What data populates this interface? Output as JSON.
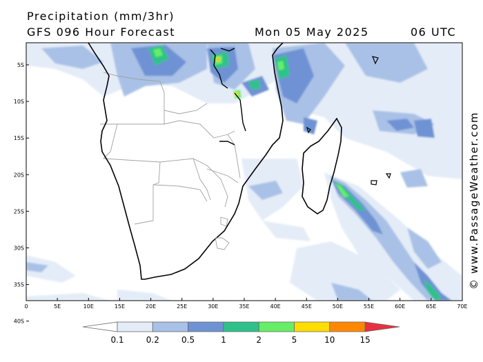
{
  "header": {
    "product": "Precipitation (mm/3hr)",
    "model": "GFS 096 Hour Forecast",
    "date": "Mon 05 May 2025",
    "time": "06 UTC"
  },
  "credit": "© www.PassageWeather.com",
  "axes": {
    "lat_labels": [
      "5S",
      "10S",
      "15S",
      "20S",
      "25S",
      "30S",
      "35S",
      "40S"
    ],
    "lon_labels": [
      "0",
      "5E",
      "10E",
      "15E",
      "20E",
      "25E",
      "30E",
      "35E",
      "40E",
      "45E",
      "50E",
      "55E",
      "60E",
      "65E",
      "70E"
    ]
  },
  "legend": {
    "labels": [
      "0.1",
      "0.2",
      "0.5",
      "1",
      "2",
      "5",
      "10",
      "15"
    ],
    "colors": [
      "#ffffff",
      "#e4ecf8",
      "#a9c1e6",
      "#6e92d4",
      "#2ec28a",
      "#66ee66",
      "#ffdd00",
      "#ff8800",
      "#e83040"
    ]
  }
}
